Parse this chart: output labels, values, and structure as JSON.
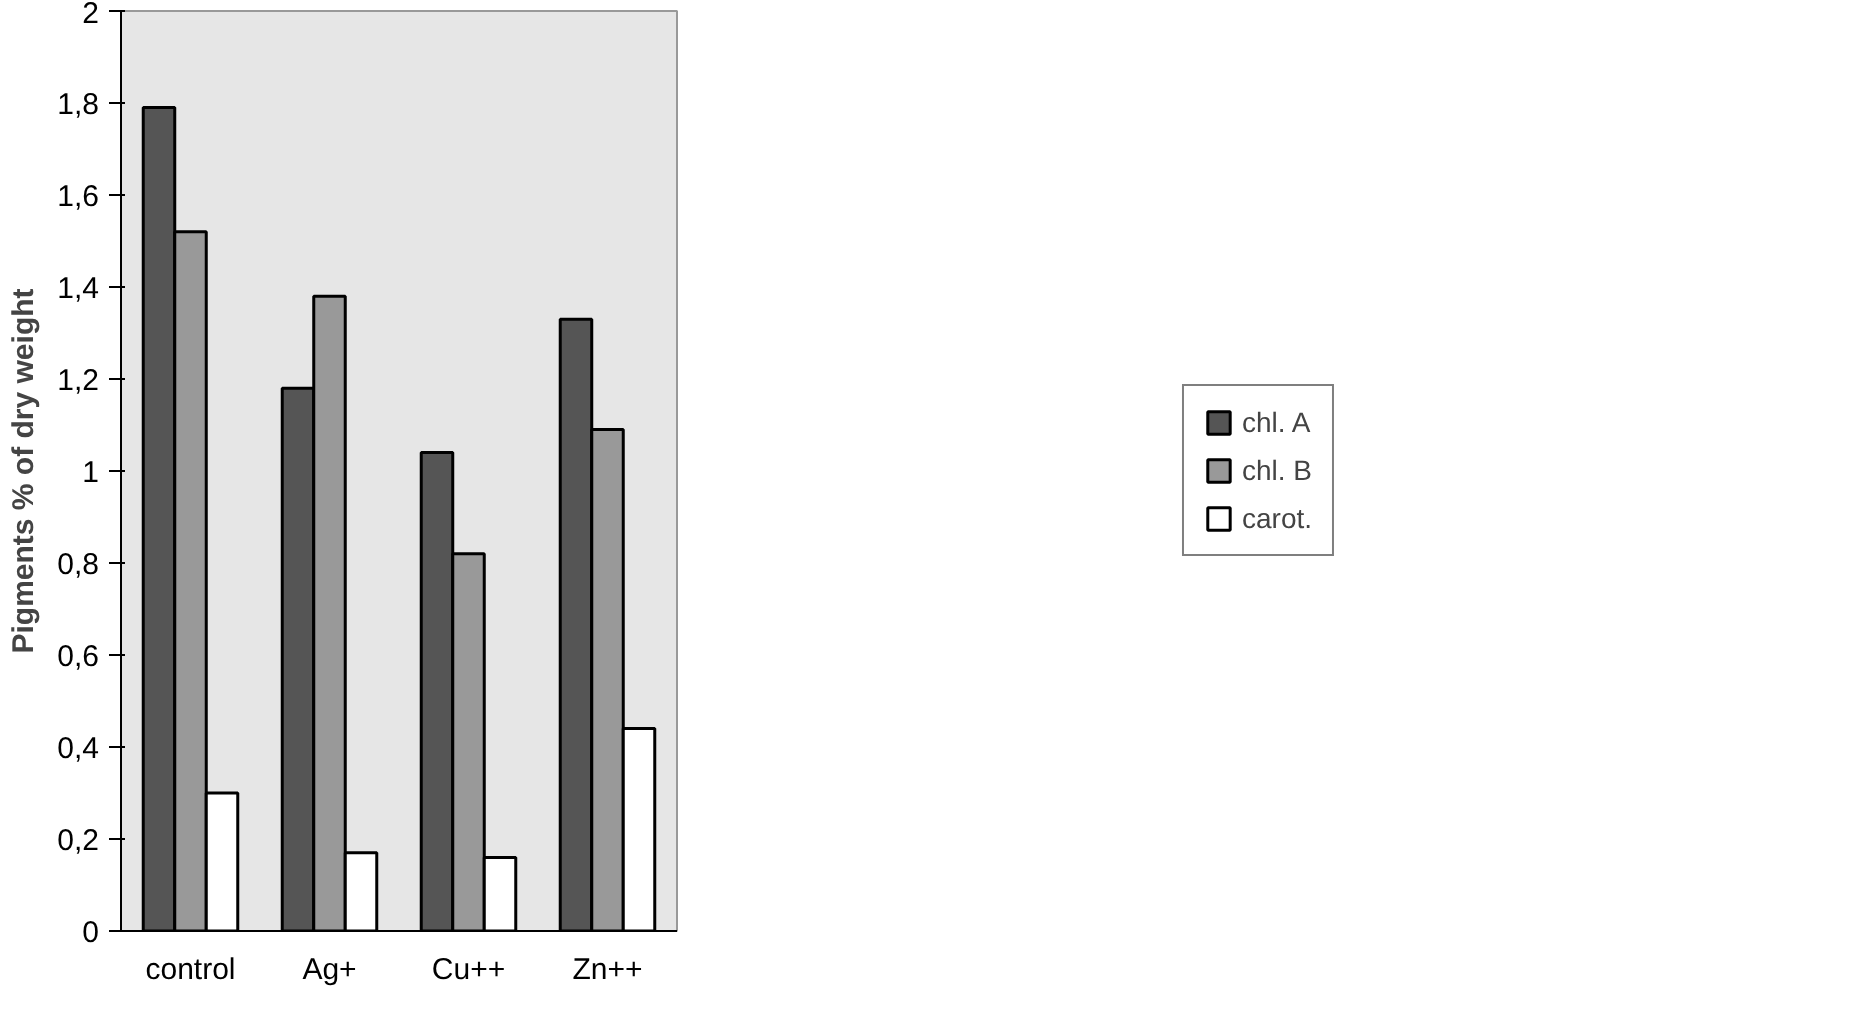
{
  "chart_data": {
    "type": "bar",
    "ylabel": "Pigments % of dry weight",
    "categories": [
      "control",
      "Ag+",
      "Cu++",
      "Zn++"
    ],
    "series": [
      {
        "name": "chl. A",
        "color": "#555555",
        "values": [
          1.79,
          1.18,
          1.04,
          1.33
        ]
      },
      {
        "name": "chl. B",
        "color": "#999999",
        "values": [
          1.52,
          1.38,
          0.82,
          1.09
        ]
      },
      {
        "name": "carot.",
        "color": "#ffffff",
        "values": [
          0.3,
          0.17,
          0.16,
          0.44
        ]
      }
    ],
    "ylim": [
      0,
      2
    ],
    "yticks": [
      0,
      {
        "value": 0.2,
        "label": "0,2"
      },
      {
        "value": 0.4,
        "label": "0,4"
      },
      {
        "value": 0.6,
        "label": "0,6"
      },
      {
        "value": 0.8,
        "label": "0,8"
      },
      1,
      {
        "value": 1.2,
        "label": "1,2"
      },
      {
        "value": 1.4,
        "label": "1,4"
      },
      {
        "value": 1.6,
        "label": "1,6"
      },
      {
        "value": 1.8,
        "label": "1,8"
      },
      2
    ],
    "grid": false,
    "legend": "right"
  }
}
